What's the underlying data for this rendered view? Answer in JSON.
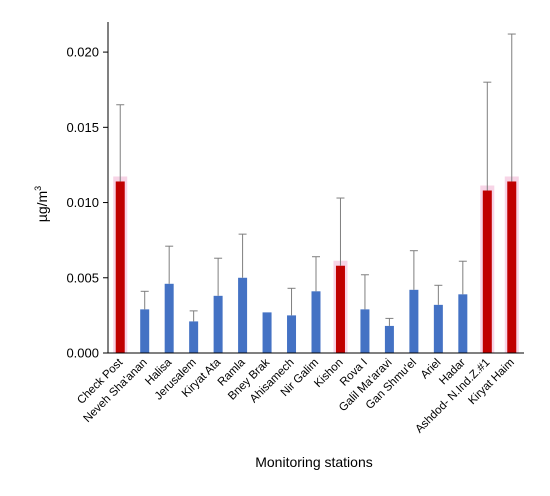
{
  "chart_data": {
    "type": "bar",
    "xlabel": "Monitoring stations",
    "ylabel": "µg/m",
    "ylabel_sup": "3",
    "ylim": [
      0,
      0.022
    ],
    "yticks": [
      0.0,
      0.005,
      0.01,
      0.015,
      0.02
    ],
    "ytick_labels": [
      "0.000",
      "0.005",
      "0.010",
      "0.015",
      "0.020"
    ],
    "grid": false,
    "categories": [
      "Check Post",
      "Neveh Sha'anan",
      "Halisa",
      "Jerusalem",
      "Kiryat Ata",
      "Ramla",
      "Bney Brak",
      "Ahisamech",
      "Nir Galim",
      "Kishon",
      "Rova I",
      "Galil Ma'aravi",
      "Gan Shmu'el",
      "Ariel",
      "Hadar",
      "Ashdod- N.Ind.Z.#1",
      "Kiryat Haim"
    ],
    "values": [
      0.0114,
      0.0029,
      0.0046,
      0.0021,
      0.0038,
      0.005,
      0.0027,
      0.0025,
      0.0041,
      0.0058,
      0.0029,
      0.0018,
      0.0042,
      0.0032,
      0.0039,
      0.0108,
      0.0114
    ],
    "error_upper": [
      0.0165,
      0.0041,
      0.0071,
      0.0028,
      0.0063,
      0.0079,
      null,
      0.0043,
      0.0064,
      0.0103,
      0.0052,
      0.0023,
      0.0068,
      0.0045,
      0.0061,
      0.018,
      0.0212
    ],
    "highlighted": [
      true,
      false,
      false,
      false,
      false,
      false,
      false,
      false,
      false,
      true,
      false,
      false,
      false,
      false,
      false,
      true,
      true
    ],
    "colors": {
      "normal": "#4472c4",
      "highlight": "#c00000",
      "highlight_glow": "#f4c2dc",
      "error_bar": "#7f7f7f",
      "axis": "#000000"
    }
  }
}
